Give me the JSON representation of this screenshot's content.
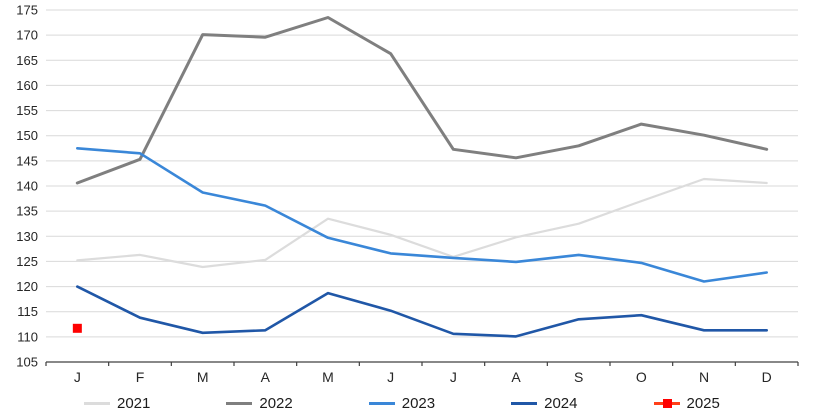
{
  "chart_data": {
    "type": "line",
    "title": "",
    "xlabel": "",
    "ylabel": "",
    "categories": [
      "J",
      "F",
      "M",
      "A",
      "M",
      "J",
      "J",
      "A",
      "S",
      "O",
      "N",
      "D"
    ],
    "y_axis": {
      "min": 105,
      "max": 175,
      "step": 5
    },
    "y_ticks": [
      105,
      110,
      115,
      120,
      125,
      130,
      135,
      140,
      145,
      150,
      155,
      160,
      165,
      170,
      175
    ],
    "grid": "horizontal",
    "legend_position": "bottom",
    "colors": {
      "gridline": "#d9d9d9",
      "axis_line": "#404040",
      "tick_label": "#262626",
      "background": "#ffffff"
    },
    "series": [
      {
        "name": "2021",
        "color": "#dcdcdc",
        "width": 2.2,
        "marker": "none",
        "values": [
          125.2,
          126.3,
          123.9,
          125.3,
          133.5,
          130.3,
          125.9,
          129.8,
          132.5,
          137.0,
          141.4,
          140.6
        ]
      },
      {
        "name": "2022",
        "color": "#7f7f7f",
        "width": 3,
        "marker": "none",
        "values": [
          140.6,
          145.3,
          170.1,
          169.6,
          173.5,
          166.3,
          147.3,
          145.6,
          148.0,
          152.3,
          150.1,
          147.3
        ]
      },
      {
        "name": "2023",
        "color": "#3a87d8",
        "width": 2.6,
        "marker": "none",
        "values": [
          147.5,
          146.5,
          138.7,
          136.1,
          129.7,
          126.6,
          125.7,
          124.9,
          126.3,
          124.7,
          121.0,
          122.8
        ]
      },
      {
        "name": "2024",
        "color": "#2057a7",
        "width": 2.6,
        "marker": "none",
        "values": [
          120.0,
          113.8,
          110.8,
          111.3,
          118.7,
          115.2,
          110.6,
          110.1,
          113.5,
          114.3,
          111.3,
          111.3
        ]
      },
      {
        "name": "2025",
        "color": "#ff4019",
        "width": 2.6,
        "marker": "square",
        "marker_color": "#fe0000",
        "marker_size": 9,
        "values": [
          111.7
        ]
      }
    ]
  },
  "legend": {
    "items": [
      {
        "label": "2021",
        "color": "#dcdcdc",
        "marker": "line"
      },
      {
        "label": "2022",
        "color": "#7f7f7f",
        "marker": "line"
      },
      {
        "label": "2023",
        "color": "#3a87d8",
        "marker": "line"
      },
      {
        "label": "2024",
        "color": "#2057a7",
        "marker": "line"
      },
      {
        "label": "2025",
        "color": "#ff4019",
        "marker": "line-square",
        "marker_color": "#fe0000"
      }
    ]
  }
}
